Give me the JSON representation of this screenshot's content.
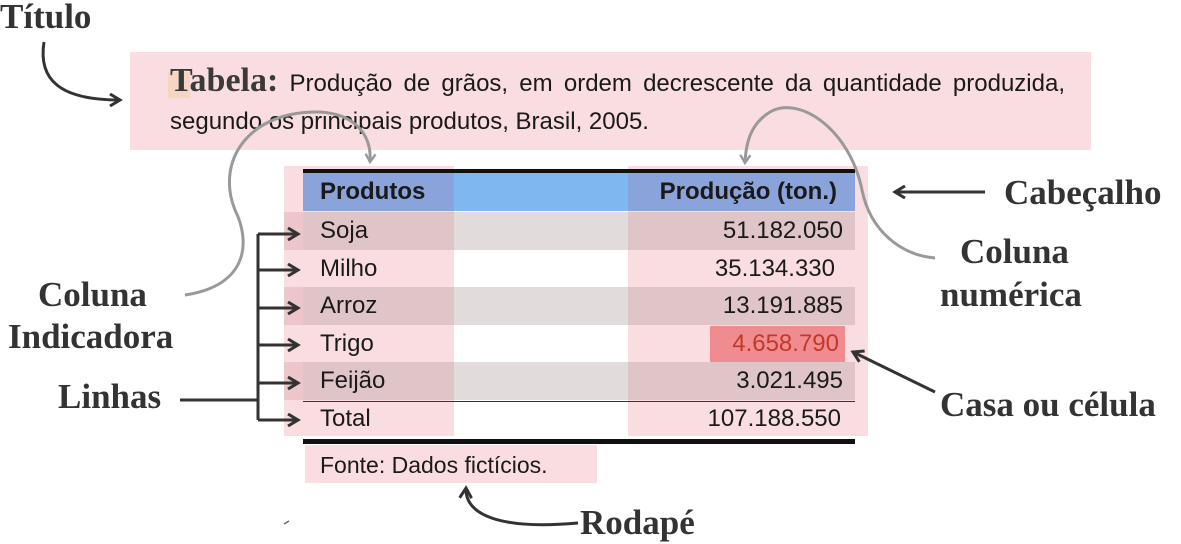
{
  "labels": {
    "titulo": "Título",
    "cabecalho": "Cabeçalho",
    "coluna_numerica_1": "Coluna",
    "coluna_numerica_2": "numérica",
    "coluna_indicadora_1": "Coluna",
    "coluna_indicadora_2": "Indicadora",
    "linhas": "Linhas",
    "casa": "Casa ou célula",
    "rodape": "Rodapé"
  },
  "title_box": {
    "bold_word": "Tabela:",
    "text": "Produção de grãos, em ordem decrescente da quantidade produzida, segundo os principais produtos, Brasil, 2005."
  },
  "table": {
    "headers": [
      "Produtos",
      "Produção (ton.)"
    ],
    "rows": [
      {
        "product": "Soja",
        "value": "51.182.050"
      },
      {
        "product": "Milho",
        "value": "35.134.330"
      },
      {
        "product": "Arroz",
        "value": "13.191.885"
      },
      {
        "product": "Trigo",
        "value": "4.658.790"
      },
      {
        "product": "Feijão",
        "value": "3.021.495"
      },
      {
        "product": "Total",
        "value": "107.188.550"
      }
    ],
    "footer": "Fonte: Dados fictícios."
  },
  "colors": {
    "highlight": "#f9dde0",
    "header_bar": "#7fa9e0",
    "header_indicator": "#8a9fd9",
    "stripe": "#e3e3e3",
    "cell_highlight": "#f08c8f",
    "cell_text": "#c0392b"
  }
}
